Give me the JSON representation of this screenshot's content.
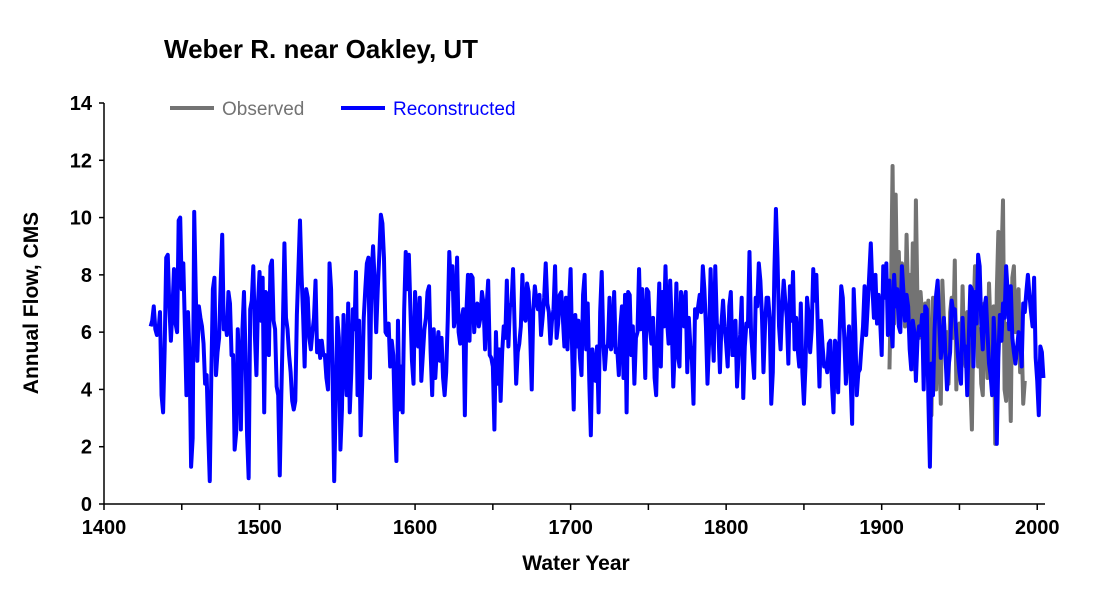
{
  "chart_data": {
    "type": "line",
    "title": "Weber R. near Oakley, UT",
    "xlabel": "Water Year",
    "ylabel": "Annual Flow, CMS",
    "xlim": [
      1400,
      2005
    ],
    "ylim": [
      0,
      14
    ],
    "x_ticks": [
      1400,
      1500,
      1600,
      1700,
      1800,
      1900,
      2000
    ],
    "y_ticks": [
      0,
      2,
      4,
      6,
      8,
      10,
      12,
      14
    ],
    "grid": false,
    "legend_position": "top-left",
    "colors": {
      "Observed": "#737373",
      "Reconstructed": "#0000ff"
    },
    "series": [
      {
        "name": "Observed",
        "start_year": 1905,
        "values": [
          4.7,
          7.5,
          11.8,
          6.3,
          10.8,
          7.0,
          8.8,
          6.5,
          8.4,
          7.9,
          6.2,
          9.4,
          7.2,
          8.0,
          5.3,
          9.1,
          4.7,
          10.6,
          7.0,
          5.8,
          7.4,
          6.6,
          6.0,
          7.0,
          5.5,
          7.1,
          4.6,
          3.1,
          7.2,
          6.2,
          4.0,
          6.9,
          5.5,
          3.5,
          7.8,
          6.4,
          5.6,
          6.0,
          4.2,
          6.7,
          7.2,
          5.8,
          8.5,
          4.0,
          6.1,
          6.3,
          4.6,
          7.6,
          5.4,
          4.8,
          6.7,
          5.8,
          4.2,
          2.6,
          6.5,
          8.3,
          7.2,
          4.8,
          6.1,
          4.2,
          3.8,
          7.0,
          6.5,
          4.4,
          7.7,
          6.1,
          4.9,
          6.9,
          2.1,
          7.4,
          9.5,
          6.2,
          8.5,
          10.6,
          4.0,
          3.6,
          6.3,
          5.2,
          2.9,
          7.9,
          8.3,
          6.0,
          7.0,
          7.5,
          4.6,
          5.8,
          3.5,
          4.3
        ]
      },
      {
        "name": "Reconstructed",
        "start_year": 1430,
        "values": [
          6.2,
          6.4,
          6.9,
          6.1,
          5.9,
          6.0,
          6.7,
          3.8,
          3.2,
          5.4,
          8.6,
          8.7,
          6.9,
          5.7,
          6.8,
          8.2,
          6.3,
          6.0,
          9.9,
          10.0,
          7.5,
          8.4,
          6.2,
          3.8,
          6.7,
          5.2,
          1.3,
          2.3,
          10.2,
          7.4,
          5.0,
          6.9,
          6.5,
          6.2,
          5.6,
          4.2,
          4.5,
          2.5,
          0.8,
          4.5,
          7.5,
          7.9,
          4.5,
          5.3,
          5.8,
          7.7,
          9.4,
          6.1,
          6.4,
          5.9,
          7.4,
          7.0,
          5.2,
          5.2,
          1.9,
          2.5,
          6.1,
          4.8,
          2.6,
          6.1,
          7.4,
          5.2,
          2.4,
          0.9,
          6.8,
          7.1,
          8.3,
          5.9,
          4.5,
          7.0,
          8.1,
          6.4,
          7.9,
          3.2,
          7.4,
          7.3,
          5.2,
          8.3,
          8.5,
          6.4,
          6.1,
          4.1,
          3.8,
          1.0,
          3.8,
          6.2,
          9.1,
          6.5,
          6.1,
          5.2,
          4.6,
          3.6,
          3.3,
          3.6,
          6.6,
          8.2,
          9.9,
          8.0,
          6.6,
          4.8,
          7.5,
          7.2,
          5.8,
          5.4,
          6.0,
          6.5,
          7.8,
          5.3,
          5.7,
          5.1,
          5.7,
          5.2,
          5.2,
          4.4,
          4.0,
          8.4,
          7.5,
          4.3,
          0.8,
          3.7,
          6.5,
          5.8,
          1.9,
          3.3,
          6.6,
          4.9,
          3.8,
          7.0,
          3.2,
          4.6,
          6.8,
          6.1,
          8.1,
          3.8,
          6.4,
          2.4,
          4.2,
          6.5,
          7.5,
          8.4,
          8.6,
          4.4,
          8.0,
          9.0,
          7.8,
          6.0,
          7.5,
          8.7,
          10.1,
          9.8,
          8.6,
          6.0,
          5.9,
          6.3,
          4.8,
          5.7,
          5.2,
          3.0,
          1.5,
          6.4,
          3.3,
          4.8,
          3.2,
          6.8,
          8.8,
          7.5,
          8.7,
          6.8,
          5.0,
          4.2,
          7.4,
          6.1,
          5.5,
          7.2,
          4.3,
          5.2,
          6.1,
          6.5,
          7.4,
          7.6,
          5.3,
          3.8,
          6.1,
          4.4,
          5.4,
          6.0,
          5.0,
          5.8,
          4.4,
          3.8,
          4.6,
          6.4,
          8.8,
          7.5,
          8.3,
          6.2,
          6.6,
          8.6,
          6.0,
          5.6,
          6.5,
          6.8,
          3.1,
          6.7,
          8.0,
          5.7,
          8.0,
          7.9,
          6.0,
          6.8,
          7.0,
          6.2,
          6.5,
          7.4,
          7.0,
          5.4,
          6.9,
          7.8,
          5.2,
          5.1,
          4.8,
          2.6,
          6.0,
          4.2,
          5.4,
          3.6,
          5.3,
          6.2,
          5.8,
          7.8,
          5.5,
          6.9,
          7.0,
          8.2,
          6.2,
          4.2,
          5.3,
          5.6,
          6.2,
          8.0,
          6.5,
          6.4,
          7.7,
          7.4,
          5.9,
          4.0,
          6.8,
          7.6,
          7.1,
          6.8,
          7.3,
          5.9,
          6.5,
          7.2,
          8.4,
          7.0,
          6.7,
          5.6,
          6.4,
          6.8,
          8.3,
          5.8,
          6.3,
          7.3,
          7.4,
          6.5,
          5.5,
          7.2,
          5.4,
          7.0,
          8.2,
          5.3,
          3.3,
          6.6,
          5.5,
          6.4,
          5.1,
          4.5,
          7.3,
          8.0,
          5.4,
          7.0,
          4.3,
          2.4,
          5.4,
          4.8,
          4.3,
          5.5,
          3.2,
          6.7,
          8.1,
          5.7,
          4.7,
          5.5,
          5.5,
          7.2,
          5.4,
          5.7,
          7.4,
          5.3,
          5.4,
          4.5,
          6.2,
          6.9,
          4.4,
          7.3,
          3.2,
          7.4,
          7.3,
          5.2,
          6.2,
          4.2,
          5.8,
          6.0,
          8.2,
          6.1,
          7.5,
          6.3,
          4.4,
          7.5,
          7.4,
          6.1,
          5.6,
          6.5,
          4.4,
          3.8,
          6.1,
          7.7,
          4.8,
          7.4,
          6.2,
          8.3,
          6.4,
          5.6,
          7.8,
          6.3,
          4.1,
          5.4,
          7.7,
          5.2,
          4.8,
          7.4,
          7.0,
          6.2,
          7.4,
          4.6,
          6.5,
          5.5,
          5.0,
          3.5,
          6.8,
          6.5,
          6.9,
          7.3,
          6.7,
          8.3,
          7.5,
          6.2,
          4.2,
          5.6,
          8.2,
          6.3,
          5.0,
          8.3,
          6.3,
          6.1,
          4.6,
          6.3,
          7.1,
          6.2,
          5.6,
          4.8,
          6.9,
          7.4,
          5.2,
          5.2,
          6.4,
          4.1,
          5.2,
          5.9,
          7.2,
          3.7,
          5.5,
          6.3,
          6.2,
          8.8,
          6.0,
          5.2,
          4.4,
          7.2,
          6.9,
          8.4,
          7.8,
          6.6,
          4.6,
          6.2,
          7.2,
          7.2,
          6.5,
          3.5,
          4.6,
          8.1,
          10.3,
          8.6,
          6.2,
          5.4,
          6.9,
          7.8,
          7.1,
          6.5,
          4.9,
          7.6,
          6.4,
          8.1,
          5.4,
          6.5,
          5.4,
          4.8,
          7.0,
          4.6,
          3.5,
          4.8,
          7.2,
          6.6,
          5.3,
          6.1,
          8.2,
          7.1,
          8.0,
          6.0,
          4.1,
          6.4,
          5.5,
          4.8,
          4.9,
          4.6,
          5.6,
          5.7,
          4.2,
          3.2,
          5.7,
          5.5,
          3.9,
          6.0,
          7.6,
          7.2,
          5.7,
          4.2,
          5.4,
          6.2,
          4.4,
          2.8,
          7.5,
          6.1,
          3.8,
          4.6,
          4.7,
          5.5,
          6.2,
          7.6,
          5.9,
          6.9,
          8.0,
          9.1,
          7.6,
          6.5,
          8.0,
          6.3,
          7.3,
          6.4,
          5.2,
          8.3,
          7.2,
          8.4,
          5.9,
          7.8,
          6.4,
          5.5,
          8.0,
          6.9,
          7.5,
          6.2,
          6.0,
          8.3,
          7.4,
          6.4,
          7.3,
          6.9,
          5.4,
          4.7,
          6.4,
          6.0,
          4.3,
          5.7,
          6.2,
          5.9,
          6.6,
          4.0,
          6.9,
          6.8,
          3.7,
          1.3,
          4.9,
          3.8,
          6.1,
          7.3,
          7.8,
          6.3,
          5.1,
          5.7,
          6.5,
          5.2,
          4.0,
          4.8,
          5.3,
          7.1,
          6.7,
          6.8,
          5.9,
          5.2,
          4.6,
          4.2,
          6.5,
          5.4,
          5.5,
          3.8,
          5.8,
          7.6,
          7.5,
          4.8,
          7.4,
          6.3,
          8.7,
          8.3,
          6.3,
          5.4,
          6.8,
          7.2,
          6.0,
          4.9,
          4.5,
          3.8,
          6.5,
          5.3,
          2.1,
          5.1,
          6.6,
          5.7,
          7.0,
          6.5,
          8.3,
          7.4,
          6.1,
          7.6,
          5.8,
          5.3,
          4.9,
          5.4,
          6.0,
          5.9,
          4.8,
          7.0,
          6.7,
          7.4,
          8.0,
          7.3,
          6.7,
          6.2,
          7.9,
          5.1,
          4.3,
          3.1,
          5.5,
          5.3,
          4.4
        ]
      }
    ]
  }
}
